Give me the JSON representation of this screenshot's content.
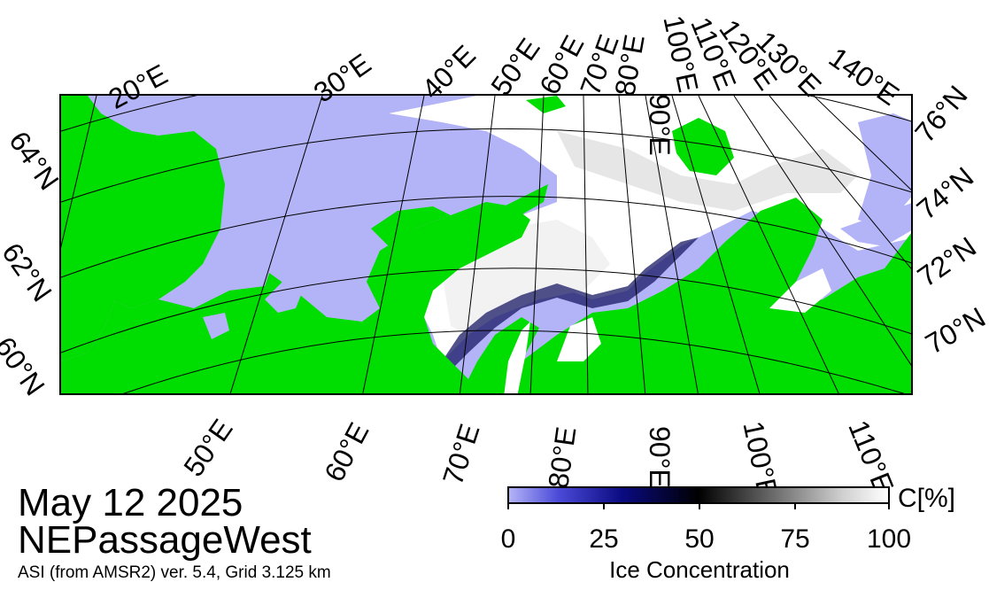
{
  "header": {
    "date": "May 12 2025",
    "region": "NEPassageWest",
    "product_info": "ASI (from AMSR2) ver. 5.4,  Grid 3.125 km"
  },
  "map": {
    "top_longitude_labels": [
      "20°E",
      "30°E",
      "40°E",
      "50°E",
      "60°E",
      "70°E",
      "80°E",
      "90°E",
      "100°E",
      "110°E",
      "120°E",
      "130°E",
      "140°E"
    ],
    "bottom_longitude_labels": [
      "50°E",
      "60°E",
      "70°E",
      "80°E",
      "90°E",
      "100°E",
      "110°E"
    ],
    "left_latitude_labels": [
      "64°N",
      "62°N",
      "60°N"
    ],
    "right_latitude_labels": [
      "76°N",
      "74°N",
      "72°N",
      "70°N"
    ],
    "colors": {
      "land": "#00dd00",
      "open_water": "#b3b3f7",
      "ice": "#ffffff",
      "grid": "#000000"
    }
  },
  "legend": {
    "unit": "C[%]",
    "title": "Ice Concentration",
    "ticks": [
      "0",
      "25",
      "50",
      "75",
      "100"
    ],
    "tick_values": [
      0,
      25,
      50,
      75,
      100
    ]
  }
}
